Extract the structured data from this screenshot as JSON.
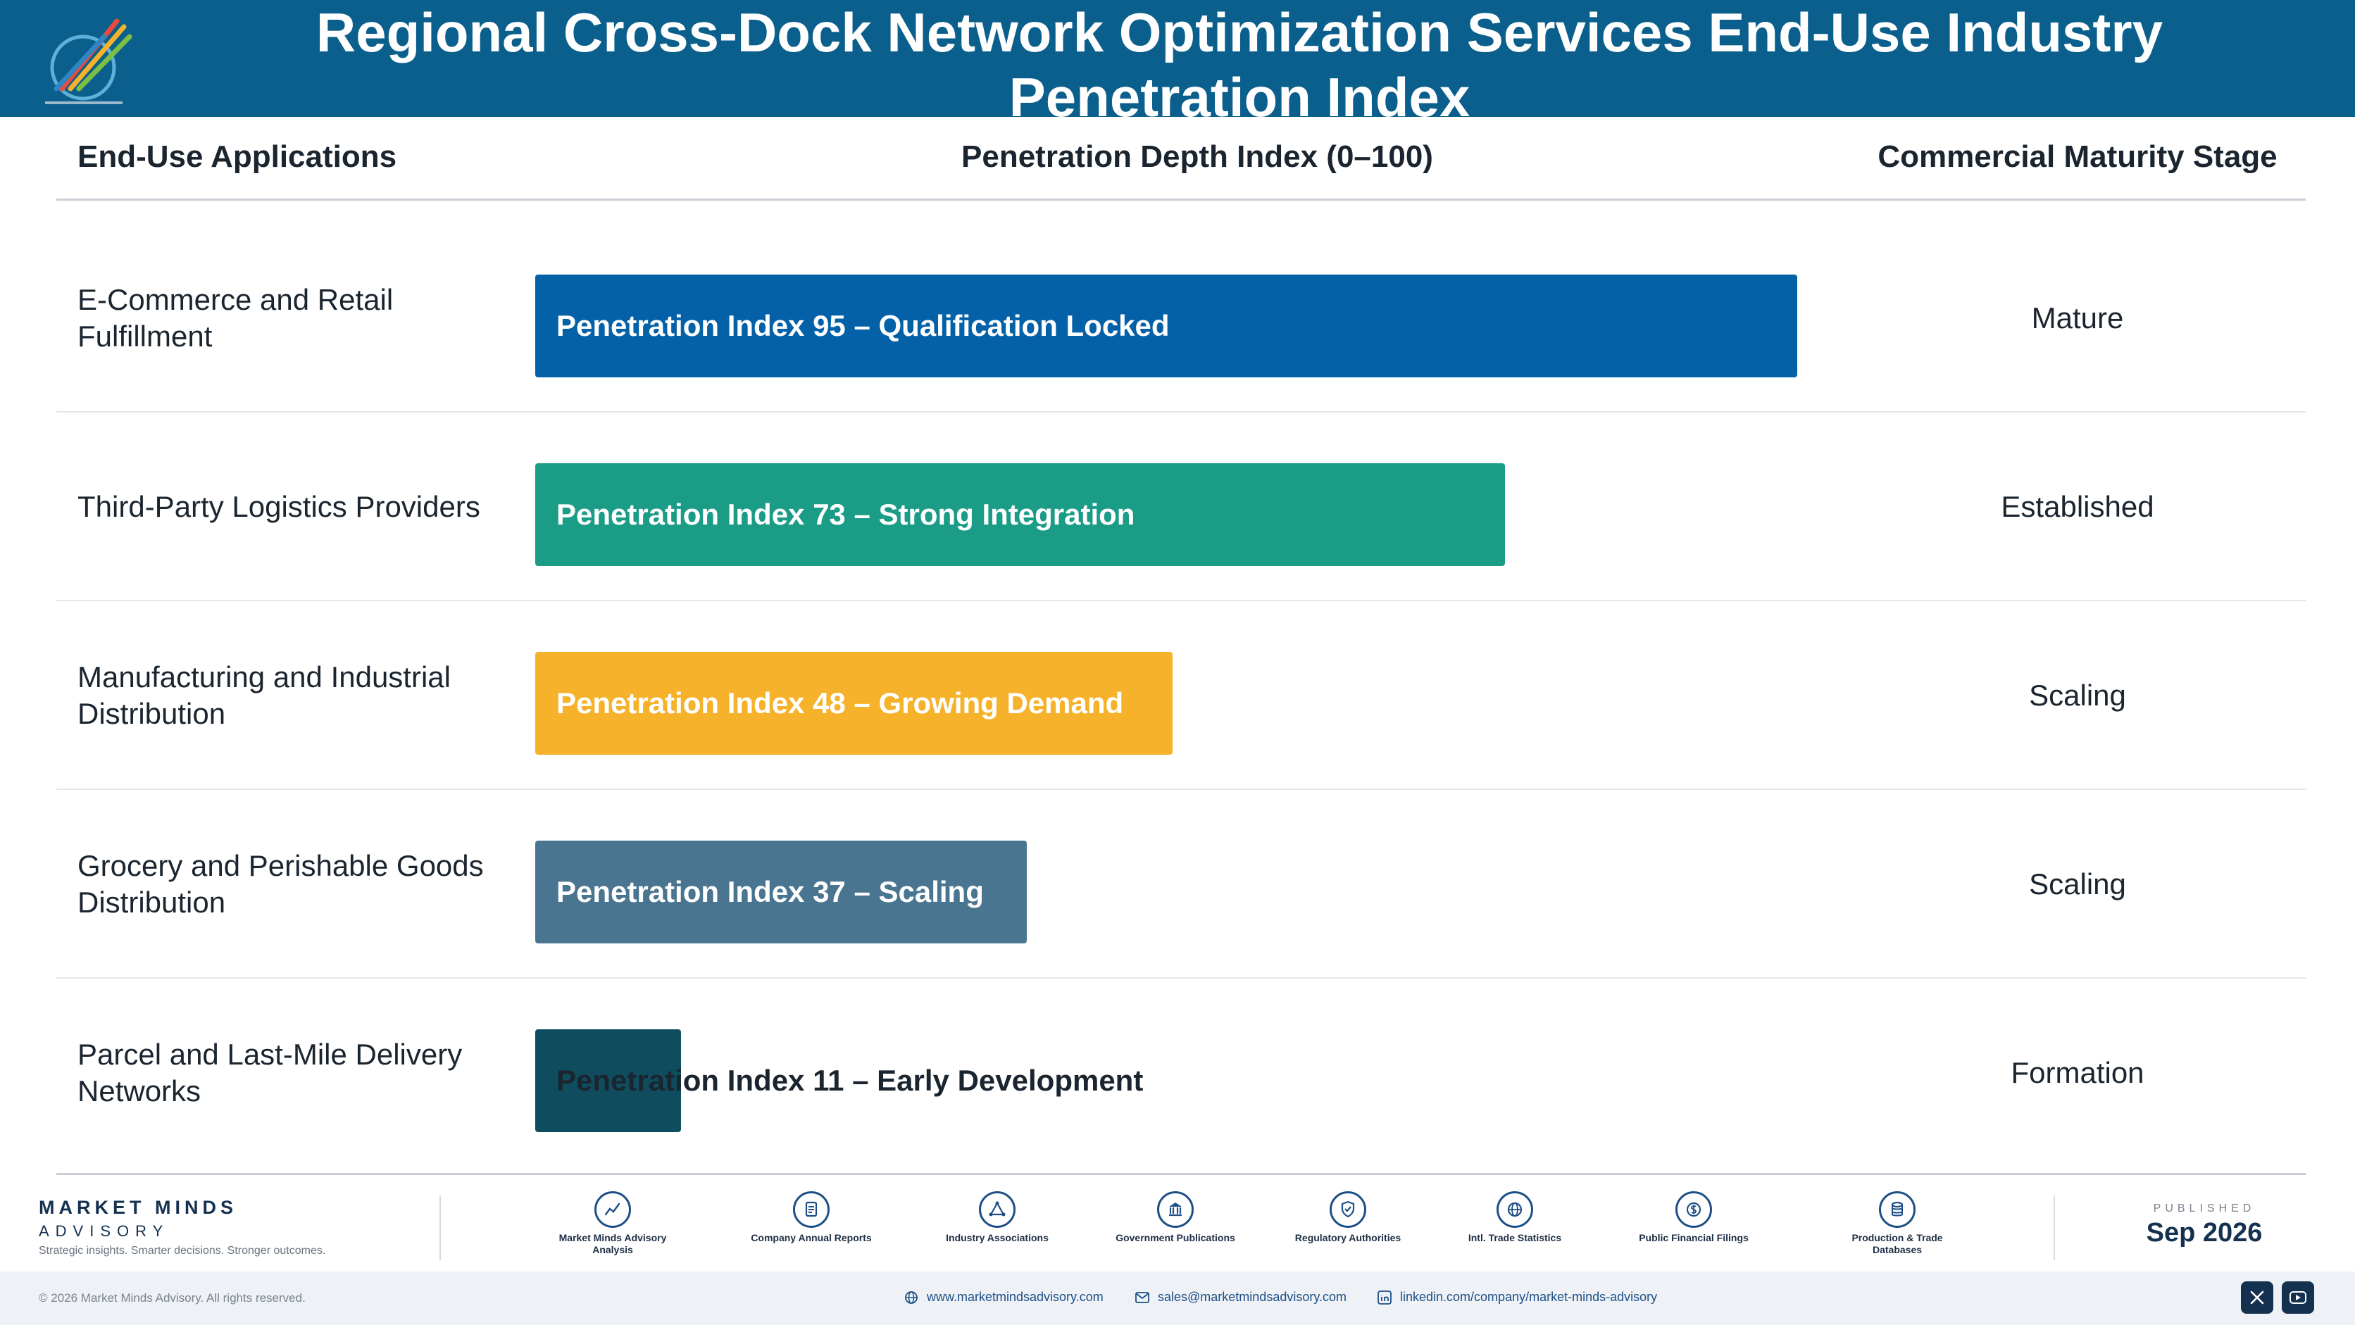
{
  "header": {
    "title": "Regional Cross-Dock Network Optimization Services End-Use Industry Penetration Index",
    "logo_icon": "market-minds-logo"
  },
  "columns": {
    "application": "End-Use Applications",
    "index": "Penetration Depth Index (0–100)",
    "stage": "Commercial Maturity Stage"
  },
  "chart_data": {
    "type": "bar",
    "orientation": "horizontal",
    "xlim": [
      0,
      100
    ],
    "grid": false,
    "categories": [
      "E-Commerce and Retail Fulfillment",
      "Third-Party Logistics Providers",
      "Manufacturing and Industrial Distribution",
      "Grocery and Perishable Goods Distribution",
      "Parcel and Last-Mile Delivery Networks"
    ],
    "values": [
      95,
      73,
      48,
      37,
      11
    ],
    "bar_labels": [
      "Penetration Index 95 – Qualification Locked",
      "Penetration Index 73 – Strong Integration",
      "Penetration Index 48 – Growing Demand",
      "Penetration Index 37 – Scaling",
      "Penetration Index 11 – Early Development"
    ],
    "stages": [
      "Mature",
      "Established",
      "Scaling",
      "Scaling",
      "Formation"
    ],
    "colors": [
      "#0461a8",
      "#1a9c87",
      "#f5b22a",
      "#4a7590",
      "#0f4d5e"
    ]
  },
  "footer": {
    "brand_name": "MARKET MINDS",
    "brand_sub": "ADVISORY",
    "brand_tagline": "Strategic insights. Smarter decisions. Stronger outcomes.",
    "sources": [
      {
        "icon": "chart-line-icon",
        "label": "Market Minds Advisory Analysis"
      },
      {
        "icon": "document-icon",
        "label": "Company Annual Reports"
      },
      {
        "icon": "network-icon",
        "label": "Industry Associations"
      },
      {
        "icon": "government-building-icon",
        "label": "Government Publications"
      },
      {
        "icon": "shield-check-icon",
        "label": "Regulatory Authorities"
      },
      {
        "icon": "globe-icon",
        "label": "Intl. Trade Statistics"
      },
      {
        "icon": "dollar-coin-icon",
        "label": "Public Financial Filings"
      },
      {
        "icon": "database-icon",
        "label": "Production & Trade Databases"
      }
    ],
    "published_label": "PUBLISHED",
    "published_date": "Sep 2026",
    "copyright": "© 2026 Market Minds Advisory. All rights reserved.",
    "website": "www.marketmindsadvisory.com",
    "email": "sales@marketmindsadvisory.com",
    "linkedin": "linkedin.com/company/market-minds-advisory"
  }
}
